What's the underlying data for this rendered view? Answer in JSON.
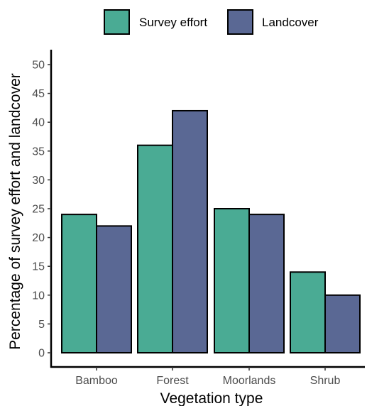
{
  "chart_data": {
    "type": "bar",
    "title": "",
    "xlabel": "Vegetation type",
    "ylabel": "Percentage of survey effort and landcover",
    "categories": [
      "Bamboo",
      "Forest",
      "Moorlands",
      "Shrub"
    ],
    "series": [
      {
        "name": "Survey effort",
        "values": [
          24,
          36,
          25,
          14
        ],
        "color": "#4aab94"
      },
      {
        "name": "Landcover",
        "values": [
          22,
          42,
          24,
          10
        ],
        "color": "#5a6894"
      }
    ],
    "ylim": [
      0,
      52
    ],
    "yticks": [
      "0",
      "5",
      "10",
      "15",
      "20",
      "25",
      "30",
      "35",
      "40",
      "45",
      "50"
    ],
    "grid": false,
    "legend_position": "top"
  }
}
